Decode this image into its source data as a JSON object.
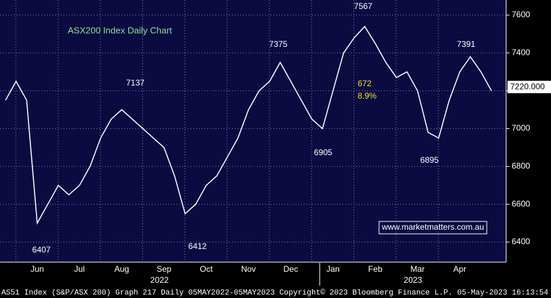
{
  "chart_data": {
    "type": "line",
    "title": "ASX200 Index Daily Chart",
    "color": "#ffffff",
    "categories": [
      null,
      null,
      null,
      "Jun",
      null,
      null,
      null,
      "Jul",
      null,
      null,
      null,
      "Aug",
      null,
      null,
      null,
      "Sep",
      null,
      null,
      null,
      "Oct",
      null,
      null,
      null,
      "Nov",
      null,
      null,
      null,
      "Dec",
      null,
      null,
      null,
      "Jan",
      null,
      null,
      null,
      "Feb",
      null,
      null,
      null,
      "Mar",
      null,
      null,
      null,
      "Apr",
      null,
      null,
      null
    ],
    "values": [
      7150,
      7250,
      7150,
      6500,
      6600,
      6700,
      6650,
      6700,
      6800,
      6950,
      7050,
      7100,
      7050,
      7000,
      6950,
      6900,
      6750,
      6550,
      6600,
      6700,
      6750,
      6850,
      6950,
      7100,
      7200,
      7250,
      7350,
      7250,
      7150,
      7050,
      7000,
      7200,
      7400,
      7480,
      7540,
      7450,
      7350,
      7270,
      7300,
      7200,
      6980,
      6950,
      7150,
      7300,
      7380,
      7300,
      7200
    ],
    "ylim": [
      6294,
      7680
    ],
    "yticks": [
      6400,
      6600,
      6800,
      7000,
      7200,
      7400,
      7600
    ],
    "grid": true,
    "years": [
      "2022",
      "2023"
    ],
    "last_value": {
      "value": 7220,
      "label": "7220.000"
    },
    "annotations": [
      "6407",
      "7137",
      "6412",
      "7375",
      "6905",
      "7567",
      "6895",
      "7391",
      "672",
      "8.9%"
    ],
    "website": "www.marketmatters.com.au",
    "footer": "AS51 Index (S&P/ASX 200) Graph 217  Daily 05MAY2022-05MAY2023 Copyright© 2023 Bloomberg Finance L.P. 05-May-2023 16:13:54"
  }
}
